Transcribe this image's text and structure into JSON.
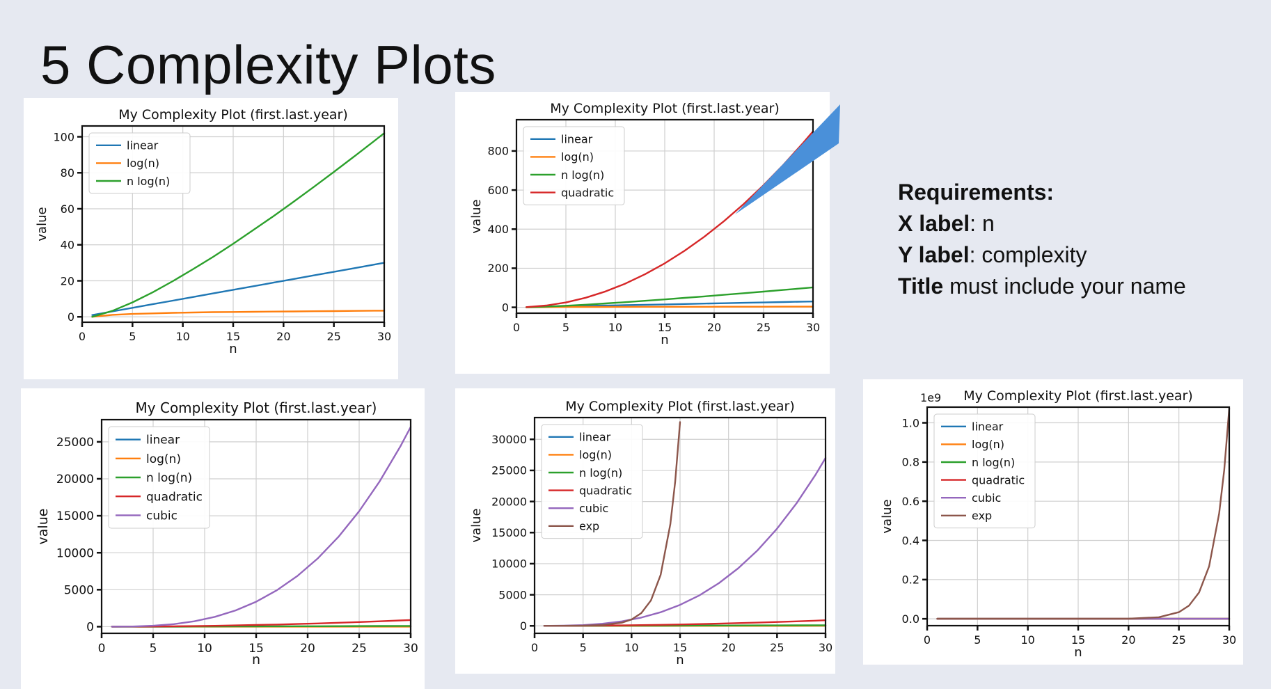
{
  "slide": {
    "title": "5 Complexity Plots",
    "requirements": {
      "heading": "Requirements:",
      "x_key": "X label",
      "x_val": ": n",
      "y_key": "Y label",
      "y_val": ": complexity",
      "title_key": "Title",
      "title_val": " must include your name"
    }
  },
  "colors": {
    "linear": "#1f77b4",
    "log(n)": "#ff7f0e",
    "n log(n)": "#2ca02c",
    "quadratic": "#d62728",
    "cubic": "#9467bd",
    "exp": "#8c564b",
    "callout": "#4a90d9"
  },
  "chart_data": [
    {
      "type": "line",
      "title": "My Complexity Plot (first.last.year)",
      "xlabel": "n",
      "ylabel": "value",
      "xlim": [
        0,
        30
      ],
      "ylim": [
        -3,
        106
      ],
      "xticks": [
        0,
        5,
        10,
        15,
        20,
        25,
        30
      ],
      "yticks": [
        0,
        20,
        40,
        60,
        80,
        100
      ],
      "grid": true,
      "legend": "top-left",
      "x": [
        1,
        3,
        5,
        7,
        9,
        11,
        13,
        15,
        17,
        19,
        21,
        23,
        25,
        27,
        29,
        30
      ],
      "series": [
        {
          "name": "linear",
          "values": [
            1,
            3,
            5,
            7,
            9,
            11,
            13,
            15,
            17,
            19,
            21,
            23,
            25,
            27,
            29,
            30
          ]
        },
        {
          "name": "log(n)",
          "values": [
            0,
            1.1,
            1.6,
            1.9,
            2.2,
            2.4,
            2.6,
            2.7,
            2.8,
            2.9,
            3.0,
            3.1,
            3.2,
            3.3,
            3.4,
            3.4
          ]
        },
        {
          "name": "n log(n)",
          "values": [
            0,
            3.3,
            8,
            13.6,
            19.8,
            26.4,
            33.3,
            40.6,
            48.2,
            55.9,
            63.9,
            72.1,
            80.5,
            89,
            97.6,
            102
          ]
        }
      ]
    },
    {
      "type": "line",
      "title": "My Complexity Plot (first.last.year)",
      "xlabel": "n",
      "ylabel": "value",
      "xlim": [
        0,
        30
      ],
      "ylim": [
        -30,
        960
      ],
      "xticks": [
        0,
        5,
        10,
        15,
        20,
        25,
        30
      ],
      "yticks": [
        0,
        200,
        400,
        600,
        800
      ],
      "grid": true,
      "legend": "top-left",
      "x": [
        1,
        3,
        5,
        7,
        9,
        11,
        13,
        15,
        17,
        19,
        21,
        23,
        25,
        27,
        29,
        30
      ],
      "series": [
        {
          "name": "linear",
          "values": [
            1,
            3,
            5,
            7,
            9,
            11,
            13,
            15,
            17,
            19,
            21,
            23,
            25,
            27,
            29,
            30
          ]
        },
        {
          "name": "log(n)",
          "values": [
            0,
            1.1,
            1.6,
            1.9,
            2.2,
            2.4,
            2.6,
            2.7,
            2.8,
            2.9,
            3.0,
            3.1,
            3.2,
            3.3,
            3.4,
            3.4
          ]
        },
        {
          "name": "n log(n)",
          "values": [
            0,
            3.3,
            8,
            13.6,
            19.8,
            26.4,
            33.3,
            40.6,
            48.2,
            55.9,
            63.9,
            72.1,
            80.5,
            89,
            97.6,
            102
          ]
        },
        {
          "name": "quadratic",
          "values": [
            1,
            9,
            25,
            49,
            81,
            121,
            169,
            225,
            289,
            361,
            441,
            529,
            625,
            729,
            841,
            900
          ]
        }
      ]
    },
    {
      "type": "line",
      "title": "My Complexity Plot (first.last.year)",
      "xlabel": "n",
      "ylabel": "value",
      "xlim": [
        0,
        30
      ],
      "ylim": [
        -900,
        28000
      ],
      "xticks": [
        0,
        5,
        10,
        15,
        20,
        25,
        30
      ],
      "yticks": [
        0,
        5000,
        10000,
        15000,
        20000,
        25000
      ],
      "grid": true,
      "legend": "top-left",
      "x": [
        1,
        3,
        5,
        7,
        9,
        11,
        13,
        15,
        17,
        19,
        21,
        23,
        25,
        27,
        29,
        30
      ],
      "series": [
        {
          "name": "linear",
          "values": [
            1,
            3,
            5,
            7,
            9,
            11,
            13,
            15,
            17,
            19,
            21,
            23,
            25,
            27,
            29,
            30
          ]
        },
        {
          "name": "log(n)",
          "values": [
            0,
            1.1,
            1.6,
            1.9,
            2.2,
            2.4,
            2.6,
            2.7,
            2.8,
            2.9,
            3.0,
            3.1,
            3.2,
            3.3,
            3.4,
            3.4
          ]
        },
        {
          "name": "n log(n)",
          "values": [
            0,
            3.3,
            8,
            13.6,
            19.8,
            26.4,
            33.3,
            40.6,
            48.2,
            55.9,
            63.9,
            72.1,
            80.5,
            89,
            97.6,
            102
          ]
        },
        {
          "name": "quadratic",
          "values": [
            1,
            9,
            25,
            49,
            81,
            121,
            169,
            225,
            289,
            361,
            441,
            529,
            625,
            729,
            841,
            900
          ]
        },
        {
          "name": "cubic",
          "values": [
            1,
            27,
            125,
            343,
            729,
            1331,
            2197,
            3375,
            4913,
            6859,
            9261,
            12167,
            15625,
            19683,
            24389,
            27000
          ]
        }
      ]
    },
    {
      "type": "line",
      "title": "My Complexity Plot (first.last.year)",
      "xlabel": "n",
      "ylabel": "value",
      "xlim": [
        0,
        30
      ],
      "ylim": [
        -1200,
        33500
      ],
      "xticks": [
        0,
        5,
        10,
        15,
        20,
        25,
        30
      ],
      "yticks": [
        0,
        5000,
        10000,
        15000,
        20000,
        25000,
        30000
      ],
      "grid": true,
      "legend": "top-left",
      "x": [
        1,
        3,
        5,
        7,
        9,
        11,
        13,
        15,
        17,
        19,
        21,
        23,
        25,
        27,
        29,
        30
      ],
      "series": [
        {
          "name": "linear",
          "values": [
            1,
            3,
            5,
            7,
            9,
            11,
            13,
            15,
            17,
            19,
            21,
            23,
            25,
            27,
            29,
            30
          ]
        },
        {
          "name": "log(n)",
          "values": [
            0,
            1.1,
            1.6,
            1.9,
            2.2,
            2.4,
            2.6,
            2.7,
            2.8,
            2.9,
            3.0,
            3.1,
            3.2,
            3.3,
            3.4,
            3.4
          ]
        },
        {
          "name": "n log(n)",
          "values": [
            0,
            3.3,
            8,
            13.6,
            19.8,
            26.4,
            33.3,
            40.6,
            48.2,
            55.9,
            63.9,
            72.1,
            80.5,
            89,
            97.6,
            102
          ]
        },
        {
          "name": "quadratic",
          "values": [
            1,
            9,
            25,
            49,
            81,
            121,
            169,
            225,
            289,
            361,
            441,
            529,
            625,
            729,
            841,
            900
          ]
        },
        {
          "name": "cubic",
          "values": [
            1,
            27,
            125,
            343,
            729,
            1331,
            2197,
            3375,
            4913,
            6859,
            9261,
            12167,
            15625,
            19683,
            24389,
            27000
          ]
        },
        {
          "name": "exp",
          "x": [
            1,
            3,
            5,
            7,
            9,
            10,
            11,
            12,
            13,
            14,
            14.5,
            15
          ],
          "values": [
            2,
            8,
            32,
            128,
            512,
            1024,
            2048,
            4096,
            8192,
            16384,
            23170,
            32768
          ]
        }
      ]
    },
    {
      "type": "line",
      "title": "My Complexity Plot (first.last.year)",
      "xlabel": "n",
      "ylabel": "value",
      "offset_label": "1e9",
      "xlim": [
        0,
        30
      ],
      "ylim": [
        -0.035,
        1.08
      ],
      "xticks": [
        0,
        5,
        10,
        15,
        20,
        25,
        30
      ],
      "yticks": [
        0.0,
        0.2,
        0.4,
        0.6,
        0.8,
        1.0
      ],
      "grid": true,
      "legend": "top-left",
      "x": [
        1,
        3,
        5,
        7,
        9,
        11,
        13,
        15,
        17,
        19,
        21,
        23,
        25,
        27,
        29,
        30
      ],
      "series": [
        {
          "name": "linear",
          "values": [
            0,
            0,
            0,
            0,
            0,
            0,
            0,
            0,
            0,
            0,
            0,
            0,
            0,
            0,
            0,
            0
          ]
        },
        {
          "name": "log(n)",
          "values": [
            0,
            0,
            0,
            0,
            0,
            0,
            0,
            0,
            0,
            0,
            0,
            0,
            0,
            0,
            0,
            0
          ]
        },
        {
          "name": "n log(n)",
          "values": [
            0,
            0,
            0,
            0,
            0,
            0,
            0,
            0,
            0,
            0,
            0,
            0,
            0,
            0,
            0,
            0
          ]
        },
        {
          "name": "quadratic",
          "values": [
            0,
            0,
            0,
            0,
            0,
            0,
            0,
            0,
            0,
            0,
            0,
            0,
            0,
            0,
            0,
            0
          ]
        },
        {
          "name": "cubic",
          "values": [
            0,
            0,
            0,
            0,
            0,
            0,
            0,
            0,
            0,
            0,
            0,
            0,
            0,
            0,
            0,
            2.7e-05
          ]
        },
        {
          "name": "exp",
          "x": [
            1,
            5,
            10,
            15,
            20,
            23,
            25,
            26,
            27,
            28,
            29,
            29.5,
            30
          ],
          "values": [
            0,
            0,
            0,
            3e-05,
            0.001,
            0.008,
            0.034,
            0.067,
            0.134,
            0.268,
            0.537,
            0.759,
            1.074
          ]
        }
      ]
    }
  ]
}
